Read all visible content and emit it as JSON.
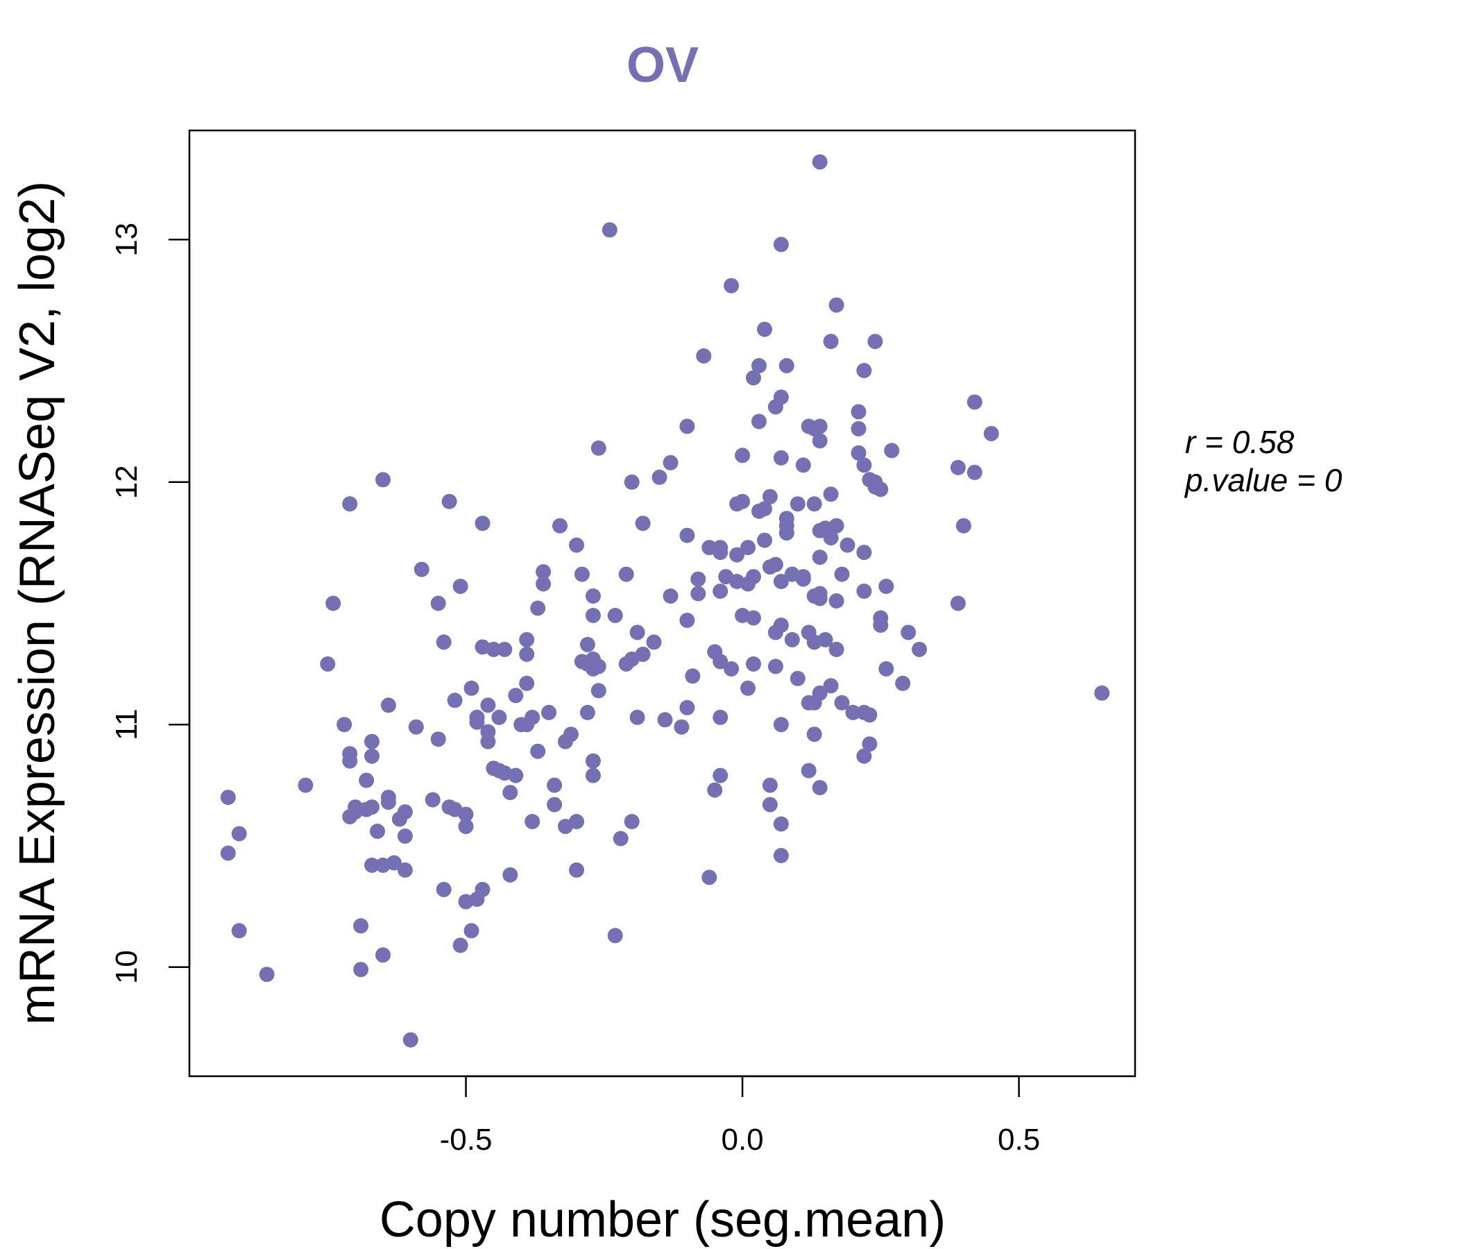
{
  "colors": {
    "point": "#7570b3",
    "title": "#7570b3",
    "axis": "#000000"
  },
  "chart_data": {
    "type": "scatter",
    "title": "OV",
    "xlabel": "Copy number (seg.mean)",
    "ylabel": "mRNA Expression (RNASeq V2, log2)",
    "xlim": [
      -1.0,
      0.71
    ],
    "ylim": [
      9.55,
      13.45
    ],
    "xticks": [
      -0.5,
      0.0,
      0.5
    ],
    "xtick_labels": [
      "-0.5",
      "0.0",
      "0.5"
    ],
    "yticks": [
      10,
      11,
      12,
      13
    ],
    "ytick_labels": [
      "10",
      "11",
      "12",
      "13"
    ],
    "grid": false,
    "stats": {
      "r_label": "r = 0.58",
      "p_label": "p.value = 0"
    },
    "points": [
      [
        -0.93,
        10.7
      ],
      [
        -0.93,
        10.47
      ],
      [
        -0.91,
        10.55
      ],
      [
        -0.91,
        10.15
      ],
      [
        -0.86,
        9.97
      ],
      [
        -0.79,
        10.75
      ],
      [
        -0.75,
        11.25
      ],
      [
        -0.74,
        11.5
      ],
      [
        -0.72,
        11.0
      ],
      [
        -0.71,
        10.88
      ],
      [
        -0.71,
        10.62
      ],
      [
        -0.71,
        10.85
      ],
      [
        -0.71,
        11.91
      ],
      [
        -0.7,
        10.66
      ],
      [
        -0.7,
        10.64
      ],
      [
        -0.69,
        10.17
      ],
      [
        -0.69,
        9.99
      ],
      [
        -0.68,
        10.65
      ],
      [
        -0.68,
        10.77
      ],
      [
        -0.67,
        10.93
      ],
      [
        -0.67,
        10.87
      ],
      [
        -0.67,
        10.66
      ],
      [
        -0.67,
        10.42
      ],
      [
        -0.66,
        10.56
      ],
      [
        -0.65,
        10.05
      ],
      [
        -0.65,
        12.01
      ],
      [
        -0.65,
        10.42
      ],
      [
        -0.64,
        10.7
      ],
      [
        -0.64,
        10.68
      ],
      [
        -0.64,
        11.08
      ],
      [
        -0.63,
        10.43
      ],
      [
        -0.62,
        10.61
      ],
      [
        -0.61,
        10.54
      ],
      [
        -0.61,
        10.4
      ],
      [
        -0.61,
        10.64
      ],
      [
        -0.6,
        9.7
      ],
      [
        -0.59,
        10.99
      ],
      [
        -0.58,
        11.64
      ],
      [
        -0.56,
        10.69
      ],
      [
        -0.55,
        10.94
      ],
      [
        -0.55,
        11.5
      ],
      [
        -0.54,
        10.32
      ],
      [
        -0.54,
        11.34
      ],
      [
        -0.53,
        10.66
      ],
      [
        -0.53,
        11.92
      ],
      [
        -0.52,
        10.65
      ],
      [
        -0.52,
        11.1
      ],
      [
        -0.51,
        10.09
      ],
      [
        -0.51,
        11.57
      ],
      [
        -0.5,
        10.27
      ],
      [
        -0.5,
        10.58
      ],
      [
        -0.5,
        10.63
      ],
      [
        -0.49,
        10.15
      ],
      [
        -0.49,
        11.15
      ],
      [
        -0.48,
        10.28
      ],
      [
        -0.48,
        11.01
      ],
      [
        -0.48,
        11.03
      ],
      [
        -0.47,
        10.32
      ],
      [
        -0.47,
        11.83
      ],
      [
        -0.47,
        11.32
      ],
      [
        -0.46,
        10.97
      ],
      [
        -0.46,
        10.93
      ],
      [
        -0.46,
        11.08
      ],
      [
        -0.45,
        10.82
      ],
      [
        -0.45,
        11.31
      ],
      [
        -0.44,
        10.81
      ],
      [
        -0.44,
        11.03
      ],
      [
        -0.43,
        11.31
      ],
      [
        -0.43,
        10.8
      ],
      [
        -0.42,
        10.38
      ],
      [
        -0.42,
        10.72
      ],
      [
        -0.41,
        11.12
      ],
      [
        -0.41,
        10.79
      ],
      [
        -0.4,
        11.0
      ],
      [
        -0.39,
        11.0
      ],
      [
        -0.39,
        11.29
      ],
      [
        -0.39,
        11.35
      ],
      [
        -0.39,
        11.17
      ],
      [
        -0.38,
        11.03
      ],
      [
        -0.38,
        10.6
      ],
      [
        -0.37,
        10.89
      ],
      [
        -0.37,
        11.48
      ],
      [
        -0.36,
        11.63
      ],
      [
        -0.36,
        11.58
      ],
      [
        -0.35,
        11.05
      ],
      [
        -0.34,
        10.75
      ],
      [
        -0.34,
        10.67
      ],
      [
        -0.33,
        11.82
      ],
      [
        -0.32,
        10.93
      ],
      [
        -0.32,
        10.58
      ],
      [
        -0.31,
        10.96
      ],
      [
        -0.3,
        11.74
      ],
      [
        -0.3,
        10.4
      ],
      [
        -0.3,
        10.6
      ],
      [
        -0.29,
        11.62
      ],
      [
        -0.29,
        11.26
      ],
      [
        -0.28,
        11.33
      ],
      [
        -0.28,
        11.05
      ],
      [
        -0.28,
        11.25
      ],
      [
        -0.27,
        11.23
      ],
      [
        -0.27,
        11.53
      ],
      [
        -0.27,
        11.45
      ],
      [
        -0.27,
        10.85
      ],
      [
        -0.27,
        10.79
      ],
      [
        -0.27,
        11.27
      ],
      [
        -0.26,
        11.14
      ],
      [
        -0.26,
        11.24
      ],
      [
        -0.26,
        12.14
      ],
      [
        -0.24,
        13.04
      ],
      [
        -0.23,
        10.13
      ],
      [
        -0.23,
        11.45
      ],
      [
        -0.22,
        10.53
      ],
      [
        -0.21,
        11.62
      ],
      [
        -0.21,
        11.25
      ],
      [
        -0.2,
        11.27
      ],
      [
        -0.2,
        12.0
      ],
      [
        -0.2,
        10.6
      ],
      [
        -0.19,
        11.38
      ],
      [
        -0.19,
        11.03
      ],
      [
        -0.18,
        11.83
      ],
      [
        -0.18,
        11.29
      ],
      [
        -0.16,
        11.34
      ],
      [
        -0.15,
        12.02
      ],
      [
        -0.14,
        11.02
      ],
      [
        -0.13,
        12.08
      ],
      [
        -0.13,
        11.53
      ],
      [
        -0.11,
        10.99
      ],
      [
        -0.1,
        11.07
      ],
      [
        -0.1,
        12.23
      ],
      [
        -0.1,
        11.78
      ],
      [
        -0.1,
        11.43
      ],
      [
        -0.09,
        11.2
      ],
      [
        -0.08,
        11.54
      ],
      [
        -0.08,
        11.6
      ],
      [
        -0.07,
        12.52
      ],
      [
        -0.06,
        10.37
      ],
      [
        -0.06,
        11.73
      ],
      [
        -0.05,
        11.3
      ],
      [
        -0.05,
        10.73
      ],
      [
        -0.04,
        10.79
      ],
      [
        -0.04,
        11.26
      ],
      [
        -0.04,
        11.03
      ],
      [
        -0.04,
        11.73
      ],
      [
        -0.04,
        11.71
      ],
      [
        -0.04,
        11.55
      ],
      [
        -0.03,
        11.61
      ],
      [
        -0.02,
        12.81
      ],
      [
        -0.02,
        11.23
      ],
      [
        -0.01,
        11.91
      ],
      [
        -0.01,
        11.59
      ],
      [
        -0.01,
        11.7
      ],
      [
        0.0,
        12.11
      ],
      [
        0.0,
        11.45
      ],
      [
        0.0,
        11.92
      ],
      [
        0.01,
        11.15
      ],
      [
        0.01,
        11.58
      ],
      [
        0.01,
        11.73
      ],
      [
        0.02,
        12.43
      ],
      [
        0.02,
        11.61
      ],
      [
        0.02,
        11.44
      ],
      [
        0.02,
        11.25
      ],
      [
        0.03,
        12.25
      ],
      [
        0.03,
        11.88
      ],
      [
        0.03,
        12.48
      ],
      [
        0.04,
        11.89
      ],
      [
        0.04,
        12.63
      ],
      [
        0.04,
        11.76
      ],
      [
        0.05,
        11.65
      ],
      [
        0.05,
        10.67
      ],
      [
        0.05,
        10.75
      ],
      [
        0.05,
        11.94
      ],
      [
        0.06,
        11.66
      ],
      [
        0.06,
        11.38
      ],
      [
        0.06,
        11.24
      ],
      [
        0.06,
        12.31
      ],
      [
        0.07,
        11.41
      ],
      [
        0.07,
        12.35
      ],
      [
        0.07,
        12.1
      ],
      [
        0.07,
        11.59
      ],
      [
        0.07,
        10.59
      ],
      [
        0.07,
        10.46
      ],
      [
        0.07,
        11.0
      ],
      [
        0.07,
        12.98
      ],
      [
        0.08,
        11.85
      ],
      [
        0.08,
        11.82
      ],
      [
        0.08,
        11.79
      ],
      [
        0.08,
        12.48
      ],
      [
        0.09,
        11.35
      ],
      [
        0.09,
        11.62
      ],
      [
        0.1,
        11.91
      ],
      [
        0.1,
        11.19
      ],
      [
        0.11,
        11.6
      ],
      [
        0.11,
        12.07
      ],
      [
        0.11,
        11.61
      ],
      [
        0.12,
        10.81
      ],
      [
        0.12,
        11.09
      ],
      [
        0.12,
        11.38
      ],
      [
        0.12,
        12.23
      ],
      [
        0.13,
        11.91
      ],
      [
        0.13,
        11.53
      ],
      [
        0.13,
        11.34
      ],
      [
        0.13,
        10.96
      ],
      [
        0.13,
        11.09
      ],
      [
        0.13,
        12.22
      ],
      [
        0.14,
        11.54
      ],
      [
        0.14,
        11.8
      ],
      [
        0.14,
        13.32
      ],
      [
        0.14,
        12.23
      ],
      [
        0.14,
        11.52
      ],
      [
        0.14,
        11.69
      ],
      [
        0.14,
        11.13
      ],
      [
        0.14,
        10.74
      ],
      [
        0.14,
        12.17
      ],
      [
        0.15,
        11.81
      ],
      [
        0.15,
        11.35
      ],
      [
        0.16,
        11.16
      ],
      [
        0.16,
        11.77
      ],
      [
        0.16,
        12.58
      ],
      [
        0.16,
        11.95
      ],
      [
        0.17,
        11.51
      ],
      [
        0.17,
        11.31
      ],
      [
        0.17,
        12.73
      ],
      [
        0.17,
        11.82
      ],
      [
        0.18,
        11.09
      ],
      [
        0.18,
        11.62
      ],
      [
        0.19,
        11.74
      ],
      [
        0.2,
        11.05
      ],
      [
        0.21,
        12.29
      ],
      [
        0.21,
        12.22
      ],
      [
        0.21,
        12.12
      ],
      [
        0.22,
        11.55
      ],
      [
        0.22,
        11.71
      ],
      [
        0.22,
        12.46
      ],
      [
        0.22,
        12.07
      ],
      [
        0.22,
        11.05
      ],
      [
        0.22,
        10.87
      ],
      [
        0.23,
        10.92
      ],
      [
        0.23,
        12.01
      ],
      [
        0.23,
        11.04
      ],
      [
        0.24,
        12.0
      ],
      [
        0.24,
        11.98
      ],
      [
        0.24,
        12.58
      ],
      [
        0.25,
        11.41
      ],
      [
        0.25,
        11.44
      ],
      [
        0.25,
        11.97
      ],
      [
        0.26,
        11.57
      ],
      [
        0.26,
        11.23
      ],
      [
        0.27,
        12.13
      ],
      [
        0.29,
        11.17
      ],
      [
        0.3,
        11.38
      ],
      [
        0.32,
        11.31
      ],
      [
        0.39,
        12.06
      ],
      [
        0.39,
        11.5
      ],
      [
        0.4,
        11.82
      ],
      [
        0.42,
        12.04
      ],
      [
        0.42,
        12.33
      ],
      [
        0.45,
        12.2
      ],
      [
        0.65,
        11.13
      ]
    ]
  }
}
